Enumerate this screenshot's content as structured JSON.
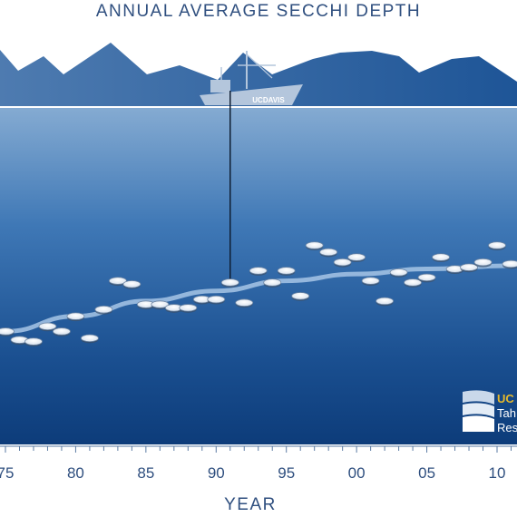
{
  "chart_data": {
    "type": "scatter",
    "title": "ANNUAL AVERAGE SECCHI DEPTH",
    "xlabel": "YEAR",
    "ylabel": "",
    "x_ticks": [
      "75",
      "80",
      "85",
      "90",
      "95",
      "00",
      "05",
      "10"
    ],
    "x_range": [
      1975,
      2011
    ],
    "y_direction": "depth increases downward",
    "y_range": [
      0,
      1
    ],
    "points": [
      {
        "x": 1975,
        "y": 0.665
      },
      {
        "x": 1976,
        "y": 0.69
      },
      {
        "x": 1977,
        "y": 0.695
      },
      {
        "x": 1978,
        "y": 0.65
      },
      {
        "x": 1979,
        "y": 0.665
      },
      {
        "x": 1980,
        "y": 0.62
      },
      {
        "x": 1981,
        "y": 0.685
      },
      {
        "x": 1982,
        "y": 0.6
      },
      {
        "x": 1983,
        "y": 0.515
      },
      {
        "x": 1984,
        "y": 0.525
      },
      {
        "x": 1985,
        "y": 0.585
      },
      {
        "x": 1986,
        "y": 0.585
      },
      {
        "x": 1987,
        "y": 0.595
      },
      {
        "x": 1988,
        "y": 0.595
      },
      {
        "x": 1989,
        "y": 0.57
      },
      {
        "x": 1990,
        "y": 0.57
      },
      {
        "x": 1991,
        "y": 0.52
      },
      {
        "x": 1992,
        "y": 0.58
      },
      {
        "x": 1993,
        "y": 0.485
      },
      {
        "x": 1994,
        "y": 0.52
      },
      {
        "x": 1995,
        "y": 0.485
      },
      {
        "x": 1996,
        "y": 0.56
      },
      {
        "x": 1997,
        "y": 0.41
      },
      {
        "x": 1998,
        "y": 0.43
      },
      {
        "x": 1999,
        "y": 0.46
      },
      {
        "x": 2000,
        "y": 0.445
      },
      {
        "x": 2001,
        "y": 0.515
      },
      {
        "x": 2002,
        "y": 0.575
      },
      {
        "x": 2003,
        "y": 0.49
      },
      {
        "x": 2004,
        "y": 0.52
      },
      {
        "x": 2005,
        "y": 0.505
      },
      {
        "x": 2006,
        "y": 0.445
      },
      {
        "x": 2007,
        "y": 0.48
      },
      {
        "x": 2008,
        "y": 0.475
      },
      {
        "x": 2009,
        "y": 0.46
      },
      {
        "x": 2010,
        "y": 0.41
      },
      {
        "x": 2011,
        "y": 0.465
      }
    ],
    "trend": [
      {
        "x": 1975,
        "y": 0.665
      },
      {
        "x": 1980,
        "y": 0.62
      },
      {
        "x": 1985,
        "y": 0.575
      },
      {
        "x": 1990,
        "y": 0.545
      },
      {
        "x": 1995,
        "y": 0.515
      },
      {
        "x": 2000,
        "y": 0.495
      },
      {
        "x": 2005,
        "y": 0.48
      },
      {
        "x": 2011,
        "y": 0.47
      }
    ],
    "grid": false,
    "legend": "none"
  },
  "boat_label": "UCDAVIS",
  "logo": {
    "line1": "UC",
    "line2": "Tah",
    "line3": "Res"
  },
  "colors": {
    "title": "#2f4f7f",
    "mountain": "#3d6a9e",
    "mountain_light": "#5b86b8",
    "water_top": "#7fa6cf",
    "water_mid": "#2c65a4",
    "water_bottom": "#0e3f7e",
    "disk": "#ffffff",
    "trend": "#9ec0e3",
    "logo_gold": "#e6b92b"
  }
}
